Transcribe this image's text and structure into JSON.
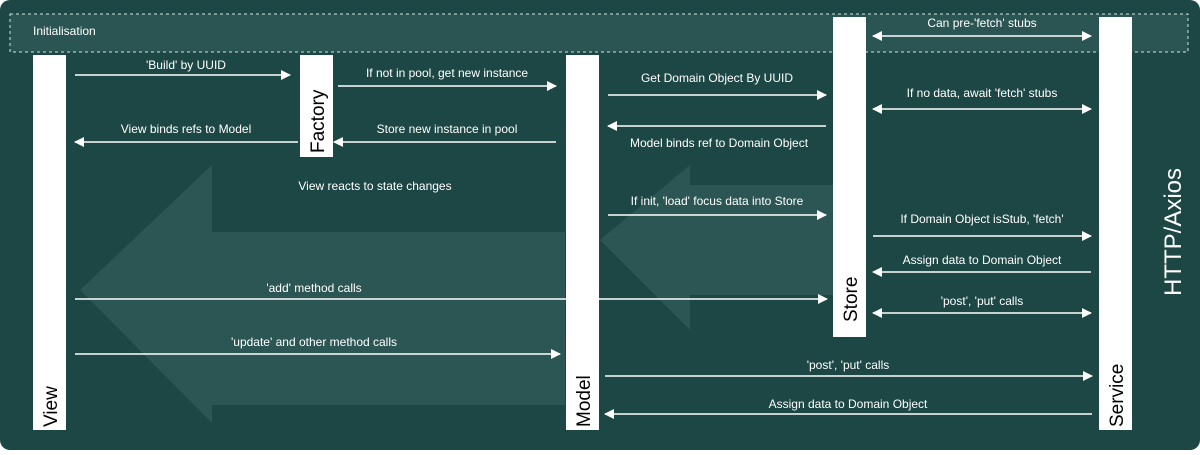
{
  "init_band": {
    "label": "Initialisation"
  },
  "side_label": "HTTP/Axios",
  "lanes": {
    "view": "View",
    "factory": "Factory",
    "model": "Model",
    "store": "Store",
    "service": "Service"
  },
  "background_note": "View reacts to state changes",
  "messages": [
    {
      "id": "build-by-uuid",
      "label": "'Build' by UUID",
      "direction": "right"
    },
    {
      "id": "get-new-instance",
      "label": "If not in pool, get new instance",
      "direction": "right"
    },
    {
      "id": "store-instance-in-pool",
      "label": "Store new instance in pool",
      "direction": "left"
    },
    {
      "id": "view-binds-refs",
      "label": "View binds refs to Model",
      "direction": "left"
    },
    {
      "id": "get-domain-object",
      "label": "Get Domain Object By UUID",
      "direction": "right"
    },
    {
      "id": "model-binds-ref",
      "label": "Model binds ref to Domain Object",
      "direction": "left"
    },
    {
      "id": "load-focus-data",
      "label": "If init, 'load' focus data into Store",
      "direction": "right"
    },
    {
      "id": "pre-fetch-stubs",
      "label": "Can pre-'fetch' stubs",
      "direction": "both"
    },
    {
      "id": "await-fetch-stubs",
      "label": "If no data, await 'fetch' stubs",
      "direction": "both"
    },
    {
      "id": "fetch-stub",
      "label": "If Domain Object isStub, 'fetch'",
      "direction": "right"
    },
    {
      "id": "assign-data-store",
      "label": "Assign data to Domain Object",
      "direction": "left"
    },
    {
      "id": "add-method-calls",
      "label": "'add' method calls",
      "direction": "right"
    },
    {
      "id": "store-post-put",
      "label": "'post', 'put' calls",
      "direction": "both"
    },
    {
      "id": "update-method-calls",
      "label": "'update' and other method calls",
      "direction": "right"
    },
    {
      "id": "model-post-put",
      "label": "'post', 'put' calls",
      "direction": "right"
    },
    {
      "id": "assign-data-model",
      "label": "Assign data to Domain Object",
      "direction": "left"
    }
  ],
  "colors": {
    "background": "#1d4745",
    "band": "#2a5553",
    "ghost_arrow": "#2c5654",
    "lane": "#ffffff",
    "text": "#ffffff",
    "lane_text": "#000000"
  }
}
